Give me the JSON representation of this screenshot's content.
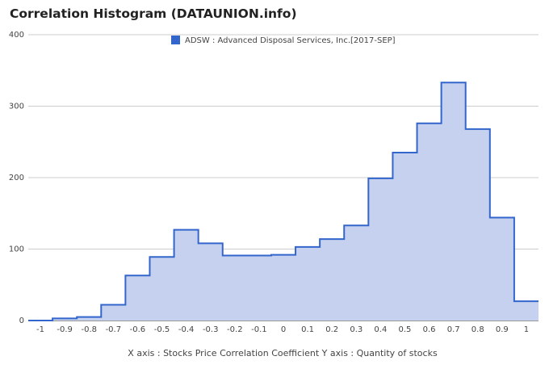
{
  "title": "Correlation Histogram (DATAUNION.info)",
  "legend": {
    "label": "ADSW : Advanced Disposal Services, Inc.[2017-SEP]",
    "color": "#3366cc"
  },
  "x_caption": "X axis : Stocks Price Correlation Coefficient  Y axis : Quantity of stocks",
  "chart_data": {
    "type": "area",
    "step": true,
    "title": "Correlation Histogram (DATAUNION.info)",
    "xlabel": "X axis : Stocks Price Correlation Coefficient",
    "ylabel": "Y axis : Quantity of stocks",
    "xlim": [
      -1.05,
      1.05
    ],
    "ylim": [
      0,
      400
    ],
    "grid": true,
    "legend_position": "top",
    "x_ticks": [
      "-1",
      "-0.9",
      "-0.8",
      "-0.7",
      "-0.6",
      "-0.5",
      "-0.4",
      "-0.3",
      "-0.2",
      "-0.1",
      "0",
      "0.1",
      "0.2",
      "0.3",
      "0.4",
      "0.5",
      "0.6",
      "0.7",
      "0.8",
      "0.9",
      "1"
    ],
    "y_ticks": [
      "0",
      "100",
      "200",
      "300",
      "400"
    ],
    "line_color": "#3366cc",
    "fill_color": "#c5d1ef",
    "series": [
      {
        "name": "ADSW : Advanced Disposal Services, Inc.[2017-SEP]",
        "x": [
          -1,
          -0.9,
          -0.8,
          -0.7,
          -0.6,
          -0.5,
          -0.4,
          -0.3,
          -0.2,
          -0.1,
          0,
          0.1,
          0.2,
          0.3,
          0.4,
          0.5,
          0.6,
          0.7,
          0.8,
          0.9,
          1
        ],
        "values": [
          0,
          3,
          5,
          22,
          63,
          89,
          127,
          108,
          91,
          91,
          92,
          103,
          114,
          133,
          199,
          235,
          276,
          333,
          268,
          144,
          27
        ]
      }
    ]
  }
}
